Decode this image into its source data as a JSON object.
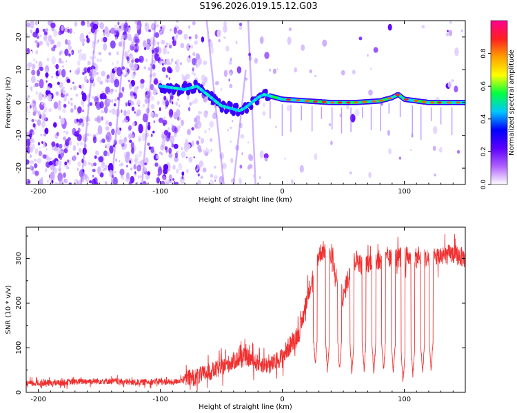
{
  "chart_data": [
    {
      "type": "heatmap",
      "title": "S196.2026.019.15.12.G03",
      "xlabel": "Height of straight line (km)",
      "ylabel": "Frequency (Hz)",
      "xlim": [
        -210,
        150
      ],
      "ylim": [
        -25,
        25
      ],
      "xticks": [
        -200,
        -100,
        0,
        100
      ],
      "yticks": [
        -20,
        -10,
        0,
        10,
        20
      ],
      "colorbar": {
        "label": "Normalized spectral amplitude",
        "range": [
          0,
          1
        ],
        "ticks": [
          "0.0",
          "0.2",
          "0.4",
          "0.6",
          "0.8"
        ],
        "colors": [
          "#ffffff",
          "#b060ff",
          "#5a00ff",
          "#0000ff",
          "#00c8ff",
          "#00ff40",
          "#ffff00",
          "#ffa000",
          "#ff2020",
          "#ff0090"
        ]
      },
      "ridge": {
        "description": "frequency track (Hz) vs height (km)",
        "x": [
          -100,
          -90,
          -80,
          -70,
          -60,
          -50,
          -40,
          -35,
          -30,
          -25,
          -20,
          -15,
          -10,
          -5,
          0,
          20,
          40,
          60,
          80,
          90,
          95,
          100,
          120,
          150
        ],
        "y": [
          5,
          4.5,
          4,
          5,
          2,
          -1,
          -2,
          -2.5,
          -1.5,
          0,
          1.5,
          2.5,
          2,
          1.5,
          1,
          0.5,
          0,
          0,
          0.5,
          1.5,
          2.5,
          1,
          0,
          0
        ]
      }
    },
    {
      "type": "line",
      "xlabel": "Height of straight line (km)",
      "ylabel": "SNR (10 * v/v)",
      "xlim": [
        -210,
        150
      ],
      "ylim": [
        0,
        370
      ],
      "xticks": [
        -200,
        -100,
        0,
        100
      ],
      "yticks": [
        0,
        100,
        200,
        300
      ],
      "color": "#f03030",
      "series": [
        {
          "name": "SNR",
          "x": [
            -210,
            -200,
            -180,
            -160,
            -140,
            -120,
            -100,
            -90,
            -80,
            -70,
            -60,
            -50,
            -40,
            -30,
            -20,
            -10,
            0,
            5,
            10,
            15,
            20,
            25,
            30,
            35,
            40,
            45,
            50,
            55,
            60,
            65,
            70,
            75,
            80,
            90,
            100,
            110,
            120,
            130,
            140,
            150
          ],
          "y": [
            20,
            20,
            22,
            25,
            25,
            22,
            25,
            22,
            30,
            35,
            45,
            55,
            70,
            80,
            65,
            60,
            80,
            100,
            120,
            140,
            210,
            260,
            310,
            320,
            300,
            250,
            210,
            270,
            300,
            285,
            290,
            300,
            295,
            300,
            305,
            300,
            300,
            305,
            310,
            300
          ]
        }
      ],
      "dropouts": [
        {
          "x": 27,
          "y": 60
        },
        {
          "x": 37,
          "y": 50
        },
        {
          "x": 47,
          "y": 50
        },
        {
          "x": 57,
          "y": 45
        },
        {
          "x": 67,
          "y": 50
        },
        {
          "x": 75,
          "y": 45
        },
        {
          "x": 83,
          "y": 50
        },
        {
          "x": 91,
          "y": 45
        },
        {
          "x": 99,
          "y": 25
        },
        {
          "x": 107,
          "y": 40
        },
        {
          "x": 115,
          "y": 45
        },
        {
          "x": 122,
          "y": 50
        }
      ]
    }
  ]
}
